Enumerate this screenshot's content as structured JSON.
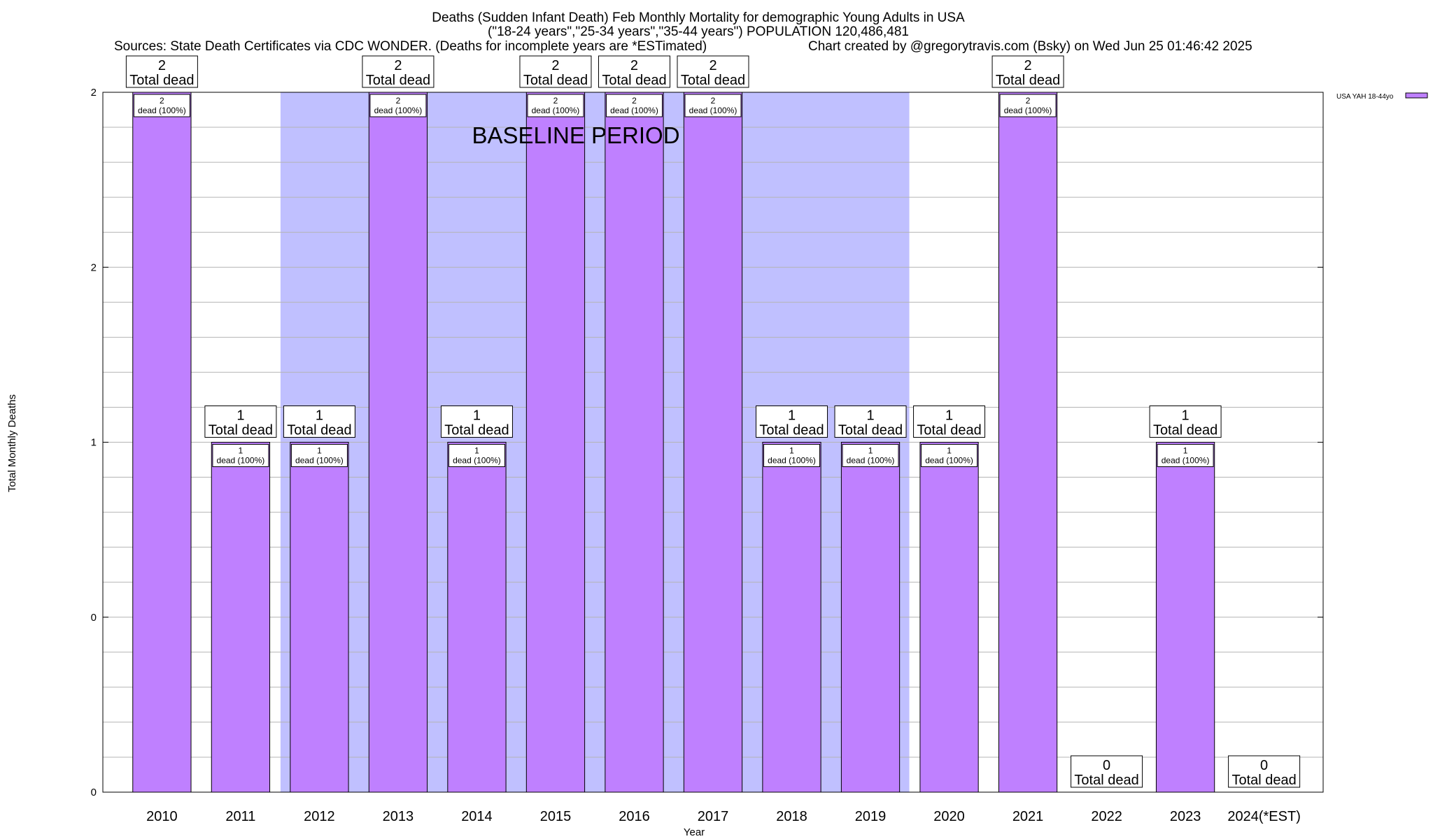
{
  "chart_data": {
    "type": "bar",
    "title_lines": [
      "Deaths (Sudden Infant Death) Feb Monthly Mortality for demographic Young Adults in USA",
      "(\"18-24 years\",\"25-34 years\",\"35-44 years\") POPULATION 120,486,481"
    ],
    "sources_text": "Sources: State Death Certificates via CDC WONDER. (Deaths for incomplete years are *ESTimated)",
    "credit_text": "Chart created by @gregorytravis.com (Bsky) on Wed Jun 25 01:46:42 2025",
    "xlabel": "Year",
    "ylabel": "Total Monthly Deaths",
    "baseline_label": "BASELINE PERIOD",
    "baseline_range": [
      "2012",
      "2019"
    ],
    "legend_label": "USA YAH 18-44yo",
    "categories": [
      "2010",
      "2011",
      "2012",
      "2013",
      "2014",
      "2015",
      "2016",
      "2017",
      "2018",
      "2019",
      "2020",
      "2021",
      "2022",
      "2023",
      "2024(*EST)"
    ],
    "values": [
      2,
      1,
      1,
      2,
      1,
      2,
      2,
      2,
      1,
      1,
      1,
      2,
      0,
      1,
      0
    ],
    "total_value_labels": [
      "2",
      "1",
      "1",
      "2",
      "1",
      "2",
      "2",
      "2",
      "1",
      "1",
      "1",
      "2",
      "0",
      "1",
      "0"
    ],
    "total_caption": "Total dead",
    "bar_value_labels": [
      "2",
      "1",
      "1",
      "2",
      "1",
      "2",
      "2",
      "2",
      "1",
      "1",
      "1",
      "2",
      "",
      "1",
      ""
    ],
    "bar_caption": "dead (100%)",
    "ytick_values": [
      0,
      0.5,
      1,
      1.5,
      2
    ],
    "ytick_labels": [
      "0",
      "0",
      "1",
      "2",
      "2"
    ],
    "ylim": [
      0,
      2
    ],
    "grid": true,
    "legend_position": "top-right",
    "colors": {
      "bar_fill": "#bf80ff",
      "baseline_fill": "#c0c0ff",
      "grid": "#b4b4b4",
      "axis": "#000000"
    }
  }
}
